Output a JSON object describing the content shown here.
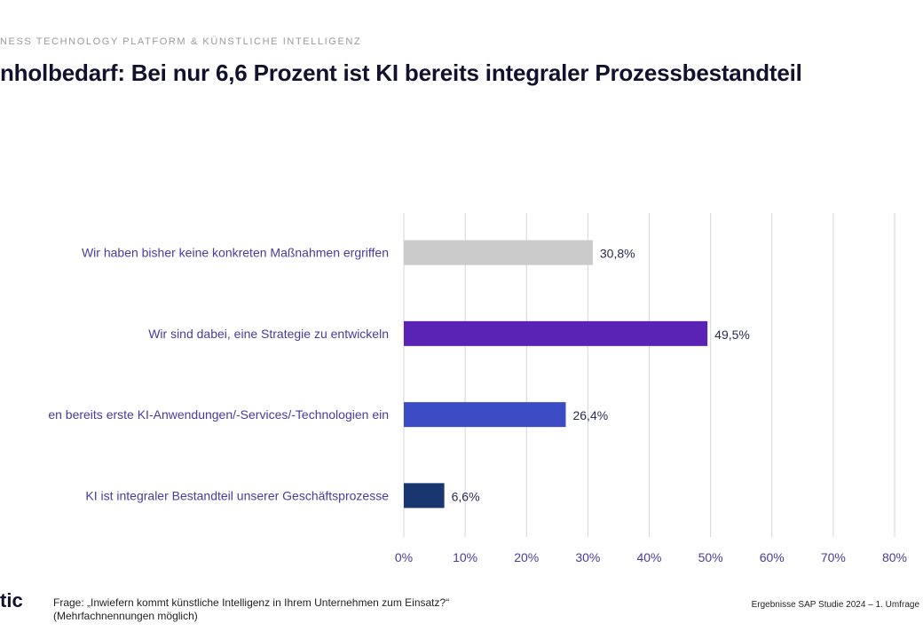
{
  "header": {
    "kicker": "NESS TECHNOLOGY PLATFORM & KÜNSTLICHE INTELLIGENZ",
    "title": "nholbedarf: Bei nur 6,6 Prozent ist KI bereits integraler Prozessbestandteil"
  },
  "chart_data": {
    "type": "bar",
    "orientation": "horizontal",
    "categories": [
      "Wir haben bisher keine konkreten Maßnahmen ergriffen",
      "Wir sind dabei, eine Strategie zu entwickeln",
      "en bereits erste KI-Anwendungen/-Services/-Technologien ein",
      "KI ist integraler Bestandteil unserer Geschäftsprozesse"
    ],
    "values": [
      30.8,
      49.5,
      26.4,
      6.6
    ],
    "value_labels": [
      "30,8%",
      "49,5%",
      "26,4%",
      "6,6%"
    ],
    "colors": [
      "#cbcbcb",
      "#5a23b5",
      "#3b4cc4",
      "#1a3670"
    ],
    "xlim": [
      0,
      80
    ],
    "xticks": [
      "0%",
      "10%",
      "20%",
      "30%",
      "40%",
      "50%",
      "60%",
      "70%",
      "80%"
    ],
    "grid": true,
    "category_label_color": "#4b3a9e"
  },
  "footer": {
    "logo": "tic",
    "question": "Frage: „Inwiefern kommt künstliche Intelligenz in Ihrem Unternehmen zum Einsatz?“",
    "note": "(Mehrfachnennungen möglich)",
    "source": "Ergebnisse SAP Studie 2024 – 1. Umfrage"
  }
}
